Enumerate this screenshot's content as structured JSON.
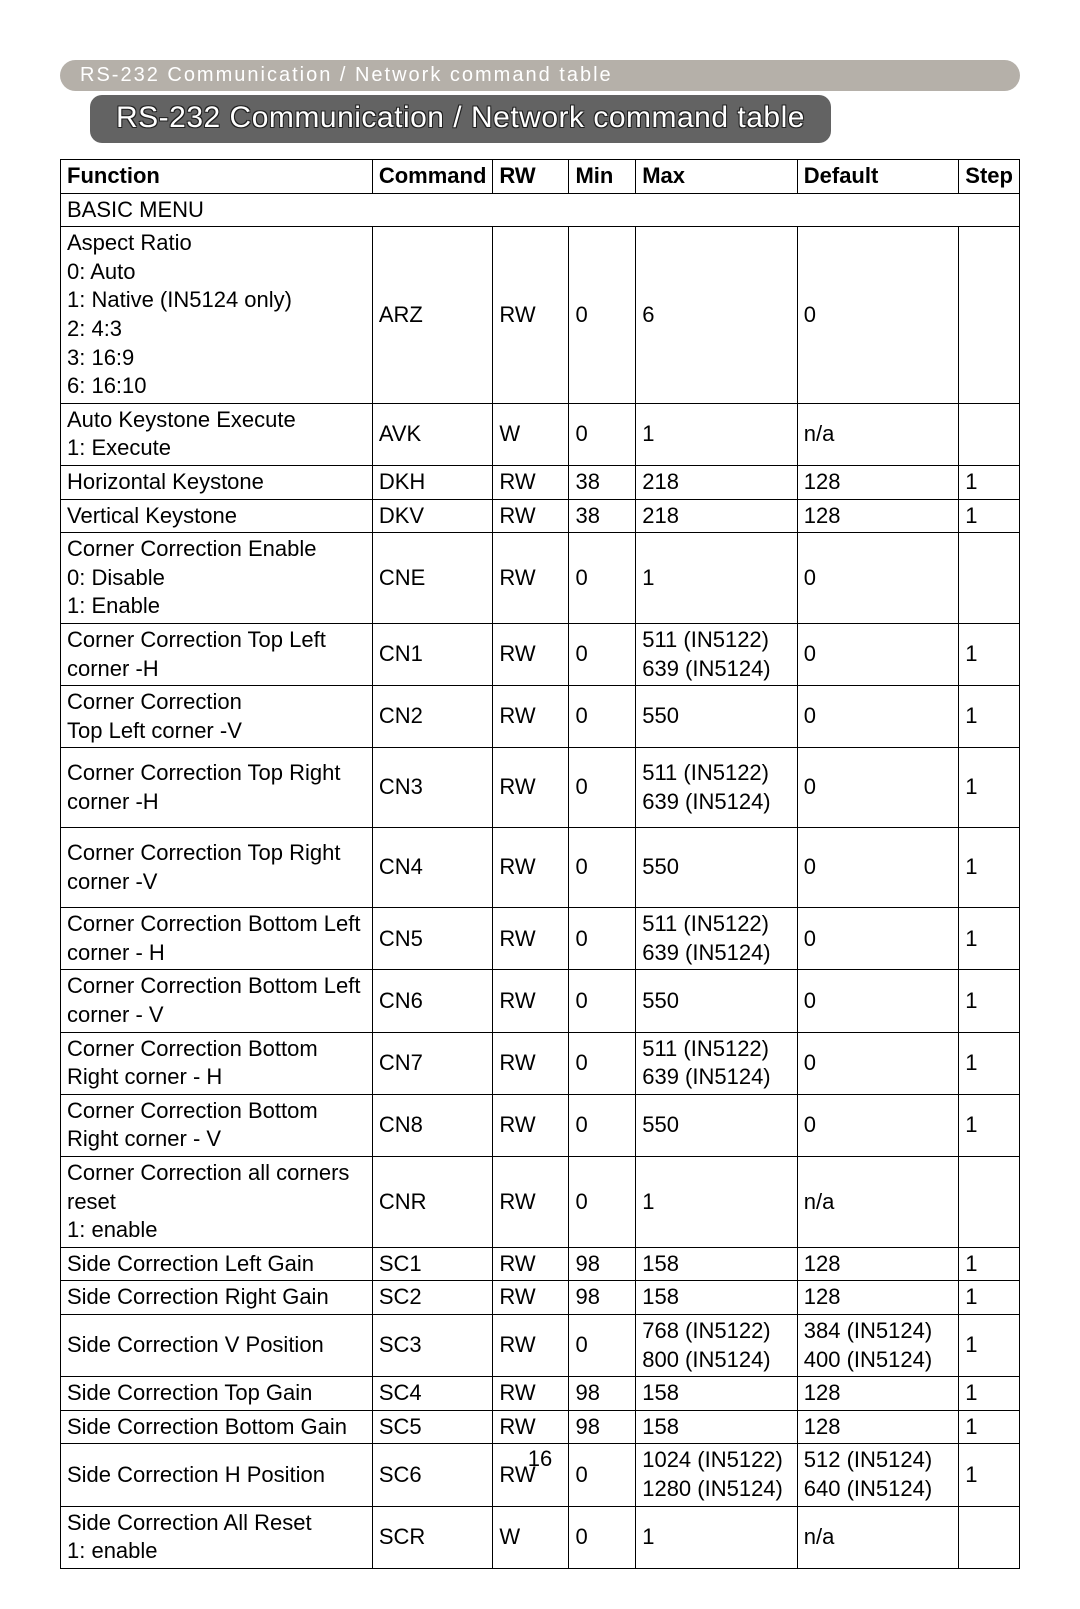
{
  "header_bar": "RS-232 Communication / Network command table",
  "title": "RS-232 Communication / Network command table",
  "columns": {
    "func": "Function",
    "cmd": "Command",
    "rw": "RW",
    "min": "Min",
    "max": "Max",
    "default": "Default",
    "step": "Step"
  },
  "section": "BASIC MENU",
  "rows": [
    {
      "func": "Aspect Ratio\n0: Auto\n1: Native (IN5124 only)\n2: 4:3\n3: 16:9\n6: 16:10",
      "cmd": "ARZ",
      "rw": "RW",
      "min": "0",
      "max": "6",
      "default": "0",
      "step": ""
    },
    {
      "func": "Auto Keystone Execute\n1: Execute",
      "cmd": "AVK",
      "rw": "W",
      "min": "0",
      "max": "1",
      "default": "n/a",
      "step": ""
    },
    {
      "func": "Horizontal Keystone",
      "cmd": "DKH",
      "rw": "RW",
      "min": "38",
      "max": "218",
      "default": "128",
      "step": "1"
    },
    {
      "func": "Vertical Keystone",
      "cmd": "DKV",
      "rw": "RW",
      "min": "38",
      "max": "218",
      "default": "128",
      "step": "1"
    },
    {
      "func": "Corner Correction Enable\n0: Disable\n1: Enable",
      "cmd": "CNE",
      "rw": "RW",
      "min": "0",
      "max": "1",
      "default": "0",
      "step": ""
    },
    {
      "func": "Corner Correction Top Left corner -H",
      "cmd": "CN1",
      "rw": "RW",
      "min": "0",
      "max": "511 (IN5122)\n639 (IN5124)",
      "default": "0",
      "step": "1"
    },
    {
      "func": "Corner Correction\nTop Left corner -V",
      "cmd": "CN2",
      "rw": "RW",
      "min": "0",
      "max": "550",
      "default": "0",
      "step": "1"
    },
    {
      "func": "Corner Correction Top Right corner -H",
      "cmd": "CN3",
      "rw": "RW",
      "min": "0",
      "max": "511 (IN5122)\n639 (IN5124)",
      "default": "0",
      "step": "1",
      "tall": true
    },
    {
      "func": "Corner Correction Top Right corner -V",
      "cmd": "CN4",
      "rw": "RW",
      "min": "0",
      "max": "550",
      "default": "0",
      "step": "1",
      "tall": true
    },
    {
      "func": "Corner Correction  Bottom Left corner - H",
      "cmd": "CN5",
      "rw": "RW",
      "min": "0",
      "max": "511 (IN5122)\n639 (IN5124)",
      "default": "0",
      "step": "1"
    },
    {
      "func": "Corner Correction Bottom Left corner - V",
      "cmd": "CN6",
      "rw": "RW",
      "min": "0",
      "max": "550",
      "default": "0",
      "step": "1"
    },
    {
      "func": "Corner Correction Bottom Right corner - H",
      "cmd": "CN7",
      "rw": "RW",
      "min": "0",
      "max": "511 (IN5122)\n639 (IN5124)",
      "default": "0",
      "step": "1"
    },
    {
      "func": "Corner Correction  Bottom Right corner - V",
      "cmd": "CN8",
      "rw": "RW",
      "min": "0",
      "max": "550",
      "default": "0",
      "step": "1"
    },
    {
      "func": "Corner Correction all corners reset\n1: enable",
      "cmd": "CNR",
      "rw": "RW",
      "min": "0",
      "max": "1",
      "default": "n/a",
      "step": ""
    },
    {
      "func": "Side Correction Left Gain",
      "cmd": "SC1",
      "rw": "RW",
      "min": "98",
      "max": "158",
      "default": "128",
      "step": "1"
    },
    {
      "func": "Side Correction Right Gain",
      "cmd": "SC2",
      "rw": "RW",
      "min": "98",
      "max": "158",
      "default": "128",
      "step": "1"
    },
    {
      "func": "Side Correction V Position",
      "cmd": "SC3",
      "rw": "RW",
      "min": "0",
      "max": "768 (IN5122)\n800 (IN5124)",
      "default": "384 (IN5124)\n400 (IN5124)",
      "step": "1"
    },
    {
      "func": "Side Correction Top Gain",
      "cmd": "SC4",
      "rw": "RW",
      "min": "98",
      "max": "158",
      "default": "128",
      "step": "1"
    },
    {
      "func": "Side Correction Bottom Gain",
      "cmd": "SC5",
      "rw": "RW",
      "min": "98",
      "max": "158",
      "default": "128",
      "step": "1"
    },
    {
      "func": "Side Correction H Position",
      "cmd": "SC6",
      "rw": "RW",
      "min": "0",
      "max": "1024 (IN5122)\n1280 (IN5124)",
      "default": "512 (IN5124)\n640 (IN5124)",
      "step": "1"
    },
    {
      "func": "Side Correction All Reset\n1: enable",
      "cmd": "SCR",
      "rw": "W",
      "min": "0",
      "max": "1",
      "default": "n/a",
      "step": ""
    }
  ],
  "page_number": "16",
  "colors": {
    "header_bar_bg": "#b5b0a9",
    "title_bar_bg": "#636363",
    "border": "#000000",
    "text": "#000000",
    "header_text": "#ffffff"
  }
}
